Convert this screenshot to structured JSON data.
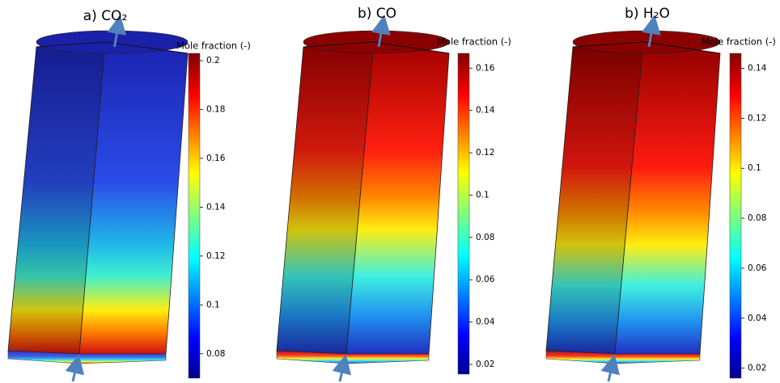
{
  "panels": [
    {
      "title": "a) CO₂",
      "colorbar": {
        "label": "Mole fraction (-)",
        "range": [
          0.07,
          0.203
        ],
        "ticks": [
          0.08,
          0.1,
          0.12,
          0.14,
          0.16,
          0.18,
          0.2
        ]
      }
    },
    {
      "title": "b) CO",
      "colorbar": {
        "label": "Mole fraction (-)",
        "range": [
          0.0154,
          0.167
        ],
        "ticks": [
          0.02,
          0.04,
          0.06,
          0.08,
          0.1,
          0.12,
          0.14,
          0.16
        ]
      }
    },
    {
      "title": "b) H₂O",
      "colorbar": {
        "label": "Mole fraction (-)",
        "range": [
          0.016,
          0.146
        ],
        "ticks": [
          0.02,
          0.04,
          0.06,
          0.08,
          0.1,
          0.12,
          0.14
        ]
      }
    }
  ]
}
